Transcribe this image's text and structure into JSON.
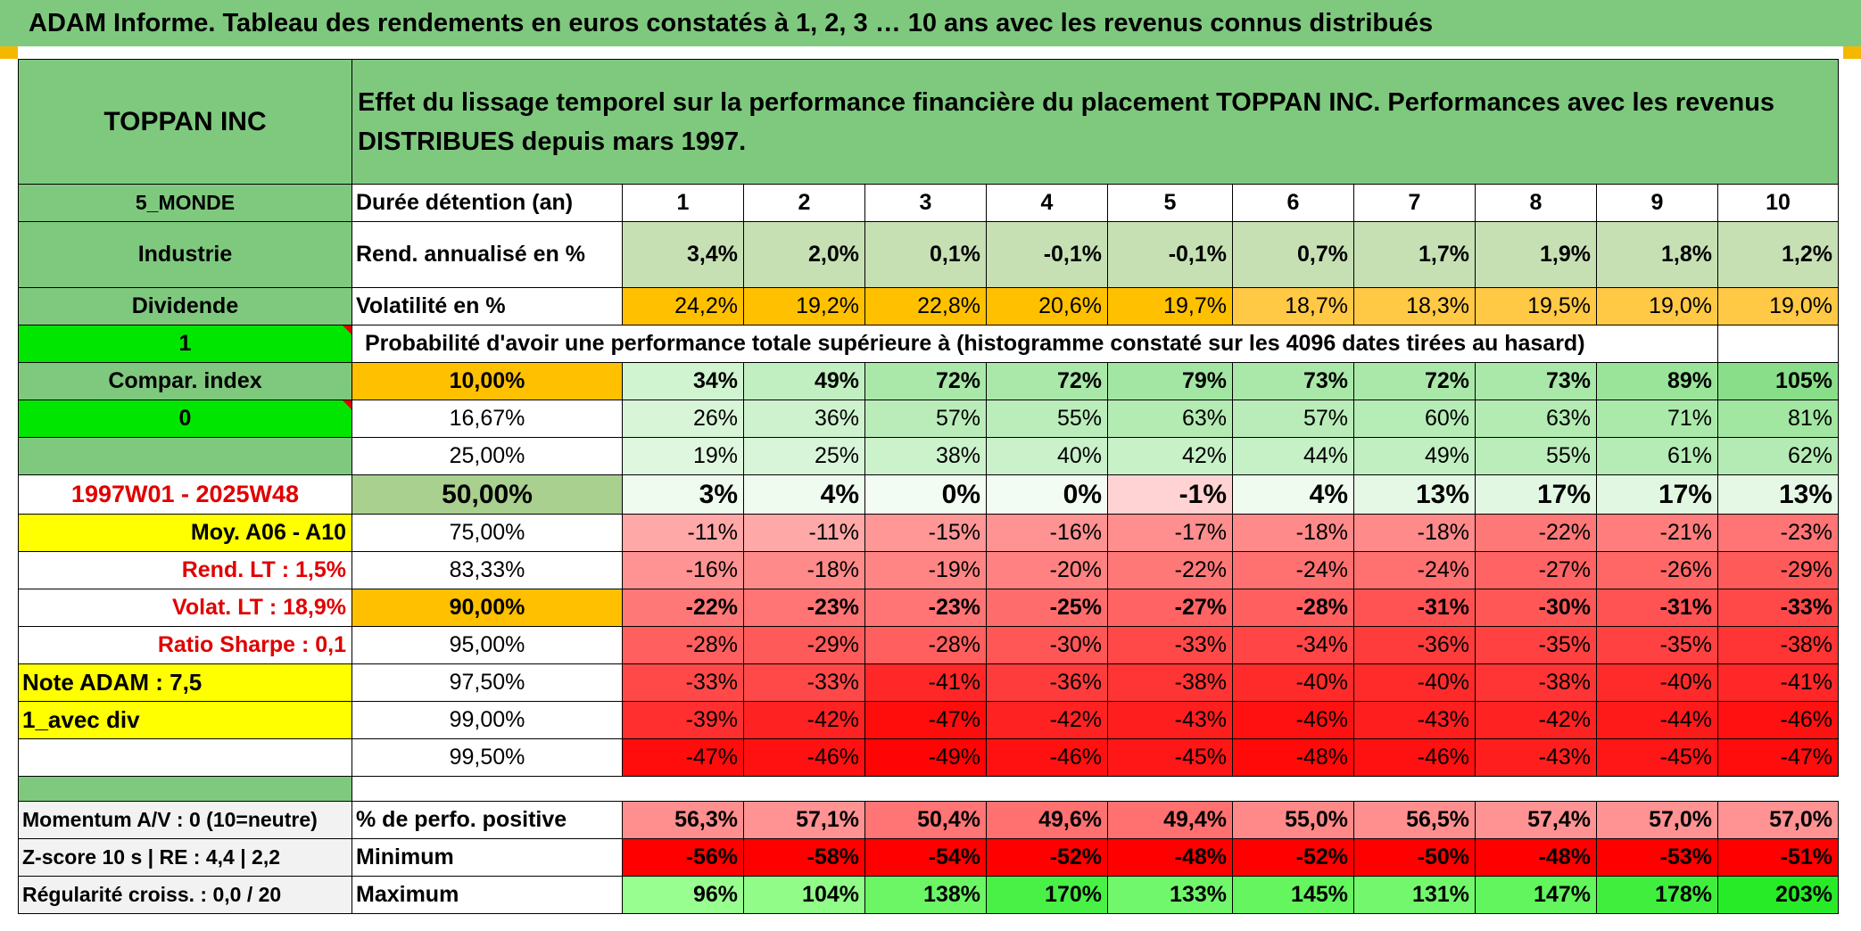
{
  "title": "ADAM Informe. Tableau des rendements en euros constatés à 1, 2, 3 … 10 ans avec les revenus connus distribués",
  "company": "TOPPAN INC",
  "description": "Effet du lissage temporel sur la performance financière du placement TOPPAN INC. Performances avec les revenus DISTRIBUES depuis mars 1997.",
  "side": {
    "region": "5_MONDE",
    "sector": "Industrie",
    "dividend": "Dividende",
    "flag1": "1",
    "compar": "Compar. index",
    "flag0": "0",
    "empty": "",
    "period": "1997W01 - 2025W48",
    "moy": "Moy. A06 - A10",
    "rend_lt": "Rend. LT :   1,5%",
    "volat_lt": "Volat. LT :   18,9%",
    "sharpe": "Ratio Sharpe :    0,1",
    "note": "Note ADAM : 7,5",
    "avec_div": "1_avec div"
  },
  "labels": {
    "duree": "Durée détention (an)",
    "rend": "Rend. annualisé en %",
    "vol": "Volatilité en %",
    "proba": "Probabilité d'avoir une performance totale supérieure à (histogramme constaté sur les 4096 dates tirées au hasard)"
  },
  "years": [
    "1",
    "2",
    "3",
    "4",
    "5",
    "6",
    "7",
    "8",
    "9",
    "10"
  ],
  "rend": [
    "3,4%",
    "2,0%",
    "0,1%",
    "-0,1%",
    "-0,1%",
    "0,7%",
    "1,7%",
    "1,9%",
    "1,8%",
    "1,2%"
  ],
  "vol": [
    "24,2%",
    "19,2%",
    "22,8%",
    "20,6%",
    "19,7%",
    "18,7%",
    "18,3%",
    "19,5%",
    "19,0%",
    "19,0%"
  ],
  "quantiles": [
    {
      "pct": "10,00%",
      "values": [
        "34%",
        "49%",
        "72%",
        "72%",
        "79%",
        "73%",
        "72%",
        "73%",
        "89%",
        "105%"
      ]
    },
    {
      "pct": "16,67%",
      "values": [
        "26%",
        "36%",
        "57%",
        "55%",
        "63%",
        "57%",
        "60%",
        "63%",
        "71%",
        "81%"
      ]
    },
    {
      "pct": "25,00%",
      "values": [
        "19%",
        "25%",
        "38%",
        "40%",
        "42%",
        "44%",
        "49%",
        "55%",
        "61%",
        "62%"
      ]
    },
    {
      "pct": "50,00%",
      "values": [
        "3%",
        "4%",
        "0%",
        "0%",
        "-1%",
        "4%",
        "13%",
        "17%",
        "17%",
        "13%"
      ]
    },
    {
      "pct": "75,00%",
      "values": [
        "-11%",
        "-11%",
        "-15%",
        "-16%",
        "-17%",
        "-18%",
        "-18%",
        "-22%",
        "-21%",
        "-23%"
      ]
    },
    {
      "pct": "83,33%",
      "values": [
        "-16%",
        "-18%",
        "-19%",
        "-20%",
        "-22%",
        "-24%",
        "-24%",
        "-27%",
        "-26%",
        "-29%"
      ]
    },
    {
      "pct": "90,00%",
      "values": [
        "-22%",
        "-23%",
        "-23%",
        "-25%",
        "-27%",
        "-28%",
        "-31%",
        "-30%",
        "-31%",
        "-33%"
      ]
    },
    {
      "pct": "95,00%",
      "values": [
        "-28%",
        "-29%",
        "-28%",
        "-30%",
        "-33%",
        "-34%",
        "-36%",
        "-35%",
        "-35%",
        "-38%"
      ]
    },
    {
      "pct": "97,50%",
      "values": [
        "-33%",
        "-33%",
        "-41%",
        "-36%",
        "-38%",
        "-40%",
        "-40%",
        "-38%",
        "-40%",
        "-41%"
      ]
    },
    {
      "pct": "99,00%",
      "values": [
        "-39%",
        "-42%",
        "-47%",
        "-42%",
        "-43%",
        "-46%",
        "-43%",
        "-42%",
        "-44%",
        "-46%"
      ]
    },
    {
      "pct": "99,50%",
      "values": [
        "-47%",
        "-46%",
        "-49%",
        "-46%",
        "-45%",
        "-48%",
        "-46%",
        "-43%",
        "-45%",
        "-47%"
      ]
    }
  ],
  "bottom": [
    {
      "side": "Momentum A/V : 0 (10=neutre)",
      "label": "% de perfo. positive",
      "values": [
        "56,3%",
        "57,1%",
        "50,4%",
        "49,6%",
        "49,4%",
        "55,0%",
        "56,5%",
        "57,4%",
        "57,0%",
        "57,0%"
      ]
    },
    {
      "side": "Z-score 10 s | RE : 4,4 | 2,2",
      "label": "Minimum",
      "values": [
        "-56%",
        "-58%",
        "-54%",
        "-52%",
        "-48%",
        "-52%",
        "-50%",
        "-48%",
        "-53%",
        "-51%"
      ]
    },
    {
      "side": "Régularité croiss. : 0,0 / 20",
      "label": "Maximum",
      "values": [
        "96%",
        "104%",
        "138%",
        "170%",
        "133%",
        "145%",
        "131%",
        "147%",
        "178%",
        "203%"
      ]
    }
  ],
  "colors": {
    "header_green": "#7fc97f",
    "yellow": "#ffff00",
    "lime": "#00e600",
    "orange": "#ffc000",
    "red_text": "#e00000"
  }
}
